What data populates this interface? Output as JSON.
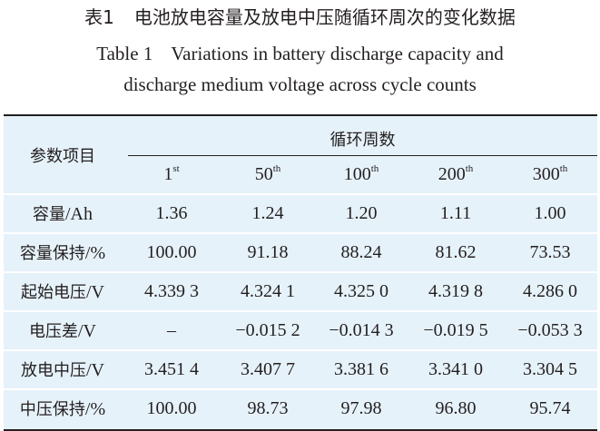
{
  "caption": {
    "cn_number": "表1",
    "cn_title": "电池放电容量及放电中压随循环周次的变化数据",
    "en_number": "Table 1",
    "en_title_line1": "Variations in battery discharge capacity and",
    "en_title_line2": "discharge medium voltage across cycle counts"
  },
  "table": {
    "row_header": "参数项目",
    "group_header": "循环周数",
    "columns": [
      {
        "base": "1",
        "sup": "st"
      },
      {
        "base": "50",
        "sup": "th"
      },
      {
        "base": "100",
        "sup": "th"
      },
      {
        "base": "200",
        "sup": "th"
      },
      {
        "base": "300",
        "sup": "th"
      }
    ],
    "rows": [
      {
        "label": "容量",
        "unit": "/Ah",
        "values": [
          "1.36",
          "1.24",
          "1.20",
          "1.11",
          "1.00"
        ]
      },
      {
        "label": "容量保持",
        "unit": "/%",
        "values": [
          "100.00",
          "91.18",
          "88.24",
          "81.62",
          "73.53"
        ]
      },
      {
        "label": "起始电压",
        "unit": "/V",
        "values": [
          "4.339 3",
          "4.324 1",
          "4.325 0",
          "4.319 8",
          "4.286 0"
        ]
      },
      {
        "label": "电压差",
        "unit": "/V",
        "values": [
          "–",
          "−0.015 2",
          "−0.014 3",
          "−0.019 5",
          "−0.053 3"
        ]
      },
      {
        "label": "放电中压",
        "unit": "/V",
        "values": [
          "3.451 4",
          "3.407 7",
          "3.381 6",
          "3.341 0",
          "3.304 5"
        ]
      },
      {
        "label": "中压保持",
        "unit": "/%",
        "values": [
          "100.00",
          "98.73",
          "97.98",
          "96.80",
          "95.74"
        ]
      }
    ]
  }
}
